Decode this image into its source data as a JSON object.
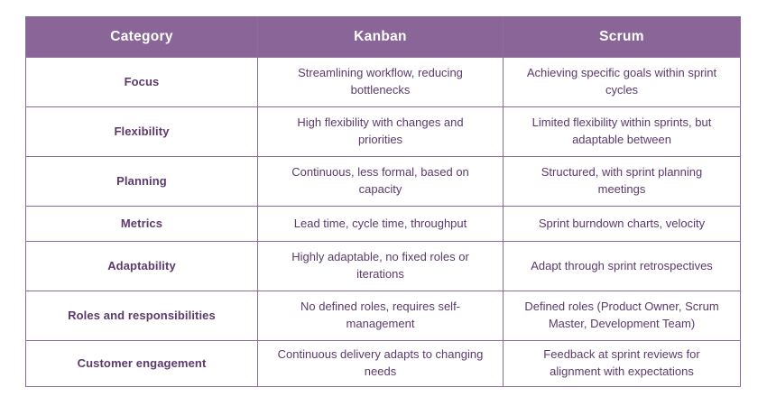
{
  "table": {
    "columns": {
      "category": "Category",
      "kanban": "Kanban",
      "scrum": "Scrum"
    },
    "rows": [
      {
        "category": "Focus",
        "kanban": "Streamlining workflow, reducing bottlenecks",
        "scrum": "Achieving specific goals within sprint cycles"
      },
      {
        "category": "Flexibility",
        "kanban": "High flexibility with changes and priorities",
        "scrum": "Limited flexibility within sprints, but adaptable between"
      },
      {
        "category": "Planning",
        "kanban": "Continuous, less formal, based on capacity",
        "scrum": "Structured, with sprint planning meetings"
      },
      {
        "category": "Metrics",
        "kanban": "Lead time, cycle time, throughput",
        "scrum": "Sprint burndown charts, velocity"
      },
      {
        "category": "Adaptability",
        "kanban": "Highly adaptable, no fixed roles or iterations",
        "scrum": "Adapt through sprint retrospectives"
      },
      {
        "category": "Roles and responsibilities",
        "kanban": "No defined roles, requires self-management",
        "scrum": "Defined roles (Product Owner, Scrum Master, Development Team)"
      },
      {
        "category": "Customer engagement",
        "kanban": "Continuous delivery adapts to changing needs",
        "scrum": "Feedback at sprint reviews for alignment with expectations"
      }
    ],
    "colors": {
      "header_bg": "#8a6598",
      "header_text": "#ffffff",
      "body_text": "#5c3a6d",
      "border": "#8e6d9d",
      "page_bg": "#ffffff"
    }
  }
}
